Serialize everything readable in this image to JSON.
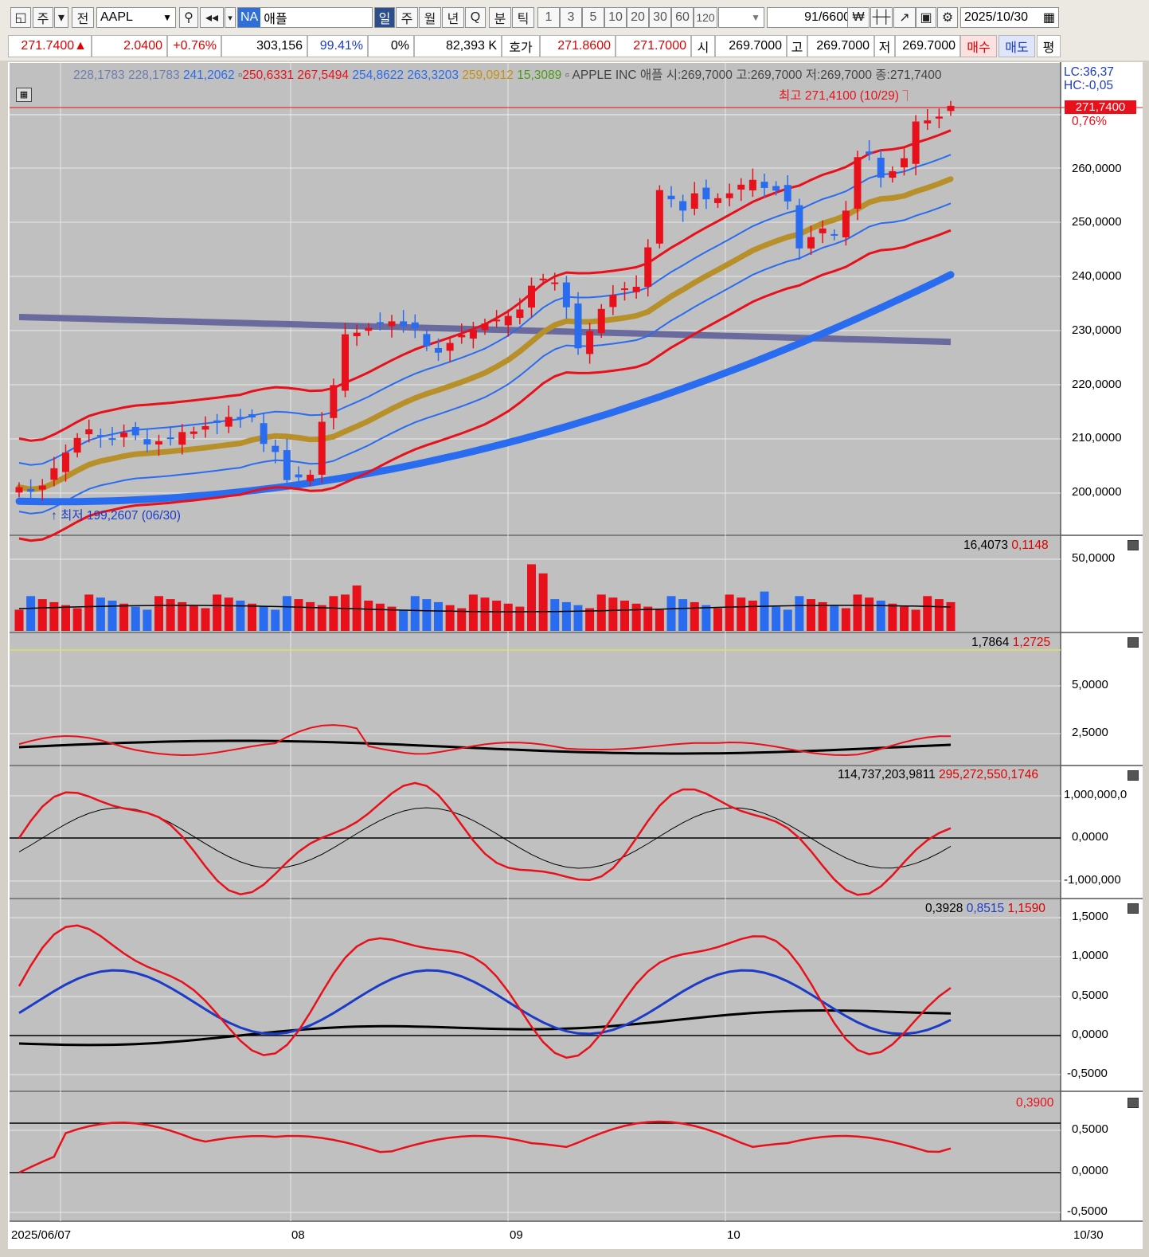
{
  "toolbar": {
    "menu_label": "주",
    "prev_label": "전",
    "symbol": "AAPL",
    "na_badge": "NA",
    "name": "애플",
    "periods": [
      "일",
      "주",
      "월",
      "년",
      "Q",
      "분",
      "틱"
    ],
    "selected_period": "일",
    "intervals": [
      "1",
      "3",
      "5",
      "10",
      "20",
      "30",
      "60",
      "120"
    ],
    "count": "91",
    "total": "/6600",
    "date": "2025/10/30"
  },
  "quote": {
    "price": "271.7400▲",
    "change": "2.0400",
    "change_pct": "+0.76%",
    "volume": "303,156",
    "vol_ratio": "99.41%",
    "zero_pct": "0%",
    "amount": "82,393 K",
    "bid_label": "호가",
    "ask_price": "271.8600",
    "bid_price": "271.7000",
    "open_label": "시",
    "open": "269.7000",
    "high_label": "고",
    "high": "269.7000",
    "low_label": "저",
    "low": "269.7000",
    "buy_label": "매수",
    "sell_label": "매도",
    "eval_label": "평"
  },
  "main_legend": {
    "v1": "228,1783",
    "v2": "228,1783",
    "v3": "241,2062",
    "v4": "250,6331",
    "v5": "267,5494",
    "v6": "254,8622",
    "v7": "263,3203",
    "v8": "259,0912",
    "v9": "15,3089",
    "title": "APPLE INC",
    "name_kr": "애플",
    "ohlc": "시:269,7000 고:269,7000 저:269,7000 종:271,7400",
    "lc": "LC:36,37",
    "hc": "HC:-0,05"
  },
  "annotations": {
    "high_marker": "최고 271,4100 (10/29)",
    "low_marker": "최저 199,2607 (06/30)",
    "last_price": "271,7400",
    "last_pct": "0,76%"
  },
  "panels": {
    "volume_legend": [
      "16,4073",
      "0,1148"
    ],
    "p2_legend": [
      "1,7864",
      "1,2725"
    ],
    "p3_legend": [
      "114,737,203,9811",
      "295,272,550,1746"
    ],
    "p4_legend": [
      "0,3928",
      "0,8515",
      "1,1590"
    ],
    "p5_legend": [
      "0,3900"
    ]
  },
  "axes": {
    "price_ticks": [
      "260,0000",
      "250,0000",
      "240,0000",
      "230,0000",
      "220,0000",
      "210,0000",
      "200,0000"
    ],
    "volume_ticks": [
      "50,0000"
    ],
    "p2_ticks": [
      "5,0000",
      "2,5000"
    ],
    "p3_ticks": [
      "1,000,000,0",
      "0,0000",
      "-1,000,000"
    ],
    "p4_ticks": [
      "1,5000",
      "1,0000",
      "0,5000",
      "0,0000",
      "-0,5000"
    ],
    "p5_ticks": [
      "0,5000",
      "0,0000",
      "-0,5000"
    ],
    "x_labels": [
      "2025/06/07",
      "08",
      "09",
      "10",
      "10/30"
    ]
  },
  "colors": {
    "up": "#e8101a",
    "down": "#2a6cf0",
    "ma_gold": "#b8902a",
    "ma_blue_thick": "#2a6cf0",
    "ma_purple": "#6a6a9e",
    "chart_bg": "#c0c0c0"
  },
  "chart_data": {
    "type": "line",
    "price_candles_close": [
      201.1,
      200.3,
      201.4,
      204.6,
      207.5,
      210.2,
      211.8,
      210.5,
      210.0,
      211.2,
      210.7,
      209.0,
      209.6,
      210.0,
      211.3,
      211.4,
      212.4,
      213.0,
      214.1,
      213.9,
      214.0,
      209.1,
      207.6,
      202.4,
      202.9,
      203.4,
      213.2,
      220.0,
      229.4,
      229.7,
      230.6,
      231.6,
      231.8,
      230.9,
      230.5,
      227.2,
      226.0,
      227.8,
      229.3,
      230.2,
      231.4,
      232.1,
      232.8,
      234.0,
      238.4,
      239.7,
      239.0,
      234.4,
      226.8,
      230.0,
      234.1,
      236.7,
      237.9,
      238.2,
      245.5,
      256.1,
      254.4,
      252.3,
      255.5,
      254.4,
      254.6,
      255.5,
      257.1,
      258.0,
      256.5,
      256.0,
      254.0,
      245.3,
      247.4,
      249.0,
      247.7,
      252.3,
      262.2,
      262.8,
      258.4,
      259.6,
      262.0,
      268.8,
      269.0,
      269.7,
      271.7
    ],
    "price_ylim": [
      195,
      275
    ],
    "volume_ylim": [
      0,
      60
    ]
  }
}
